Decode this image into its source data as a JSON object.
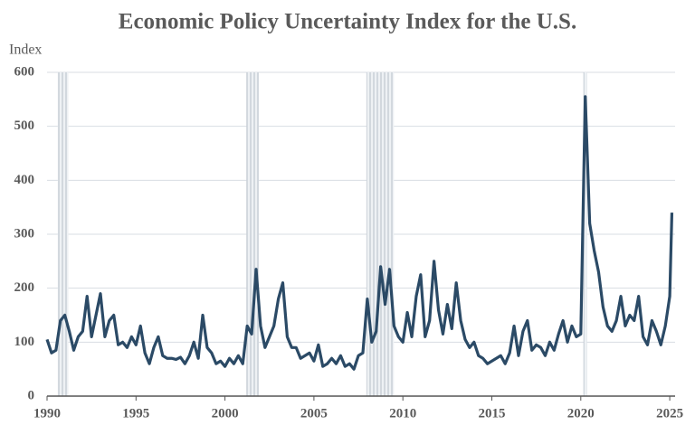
{
  "chart_data": {
    "type": "line",
    "title": "Economic Policy Uncertainty Index for the U.S.",
    "y_label": "Index",
    "x": [
      1990,
      1990.25,
      1990.5,
      1990.75,
      1991,
      1991.25,
      1991.5,
      1991.75,
      1992,
      1992.25,
      1992.5,
      1992.75,
      1993,
      1993.25,
      1993.5,
      1993.75,
      1994,
      1994.25,
      1994.5,
      1994.75,
      1995,
      1995.25,
      1995.5,
      1995.75,
      1996,
      1996.25,
      1996.5,
      1996.75,
      1997,
      1997.25,
      1997.5,
      1997.75,
      1998,
      1998.25,
      1998.5,
      1998.75,
      1999,
      1999.25,
      1999.5,
      1999.75,
      2000,
      2000.25,
      2000.5,
      2000.75,
      2001,
      2001.25,
      2001.5,
      2001.75,
      2002,
      2002.25,
      2002.5,
      2002.75,
      2003,
      2003.25,
      2003.5,
      2003.75,
      2004,
      2004.25,
      2004.5,
      2004.75,
      2005,
      2005.25,
      2005.5,
      2005.75,
      2006,
      2006.25,
      2006.5,
      2006.75,
      2007,
      2007.25,
      2007.5,
      2007.75,
      2008,
      2008.25,
      2008.5,
      2008.75,
      2009,
      2009.25,
      2009.5,
      2009.75,
      2010,
      2010.25,
      2010.5,
      2010.75,
      2011,
      2011.25,
      2011.5,
      2011.75,
      2012,
      2012.25,
      2012.5,
      2012.75,
      2013,
      2013.25,
      2013.5,
      2013.75,
      2014,
      2014.25,
      2014.5,
      2014.75,
      2015,
      2015.25,
      2015.5,
      2015.75,
      2016,
      2016.25,
      2016.5,
      2016.75,
      2017,
      2017.25,
      2017.5,
      2017.75,
      2018,
      2018.25,
      2018.5,
      2018.75,
      2019,
      2019.25,
      2019.5,
      2019.75,
      2020,
      2020.25,
      2020.5,
      2020.75,
      2021,
      2021.25,
      2021.5,
      2021.75,
      2022,
      2022.25,
      2022.5,
      2022.75,
      2023,
      2023.25,
      2023.5,
      2023.75,
      2024,
      2024.25,
      2024.5,
      2024.75,
      2025,
      2025.12
    ],
    "series": [
      {
        "name": "Index",
        "color": "#2b4a66",
        "values": [
          105,
          80,
          85,
          140,
          150,
          120,
          85,
          110,
          120,
          185,
          110,
          150,
          190,
          110,
          140,
          150,
          95,
          100,
          90,
          110,
          95,
          130,
          80,
          60,
          90,
          110,
          75,
          70,
          70,
          68,
          72,
          60,
          75,
          100,
          70,
          150,
          90,
          80,
          60,
          65,
          55,
          70,
          60,
          75,
          60,
          130,
          115,
          235,
          130,
          90,
          110,
          130,
          180,
          210,
          110,
          90,
          90,
          70,
          75,
          80,
          65,
          95,
          55,
          60,
          70,
          60,
          75,
          55,
          60,
          50,
          75,
          80,
          180,
          100,
          120,
          240,
          170,
          235,
          130,
          110,
          100,
          155,
          110,
          185,
          225,
          110,
          140,
          250,
          160,
          115,
          170,
          125,
          210,
          140,
          105,
          90,
          100,
          75,
          70,
          60,
          65,
          70,
          75,
          60,
          80,
          130,
          75,
          120,
          140,
          85,
          95,
          90,
          75,
          100,
          85,
          115,
          140,
          100,
          130,
          110,
          115,
          555,
          320,
          270,
          230,
          165,
          130,
          120,
          140,
          185,
          130,
          150,
          140,
          185,
          110,
          95,
          140,
          120,
          95,
          130,
          185,
          340
        ]
      }
    ],
    "recessions": [
      [
        1990.6,
        1991.2
      ],
      [
        2001.2,
        2001.9
      ],
      [
        2007.95,
        2009.5
      ],
      [
        2020.15,
        2020.35
      ]
    ],
    "xlim": [
      1990,
      2025.3
    ],
    "xticks": [
      1990,
      1995,
      2000,
      2005,
      2010,
      2015,
      2020,
      2025
    ],
    "ylim": [
      0,
      600
    ],
    "yticks": [
      0,
      100,
      200,
      300,
      400,
      500,
      600
    ],
    "grid": true
  }
}
